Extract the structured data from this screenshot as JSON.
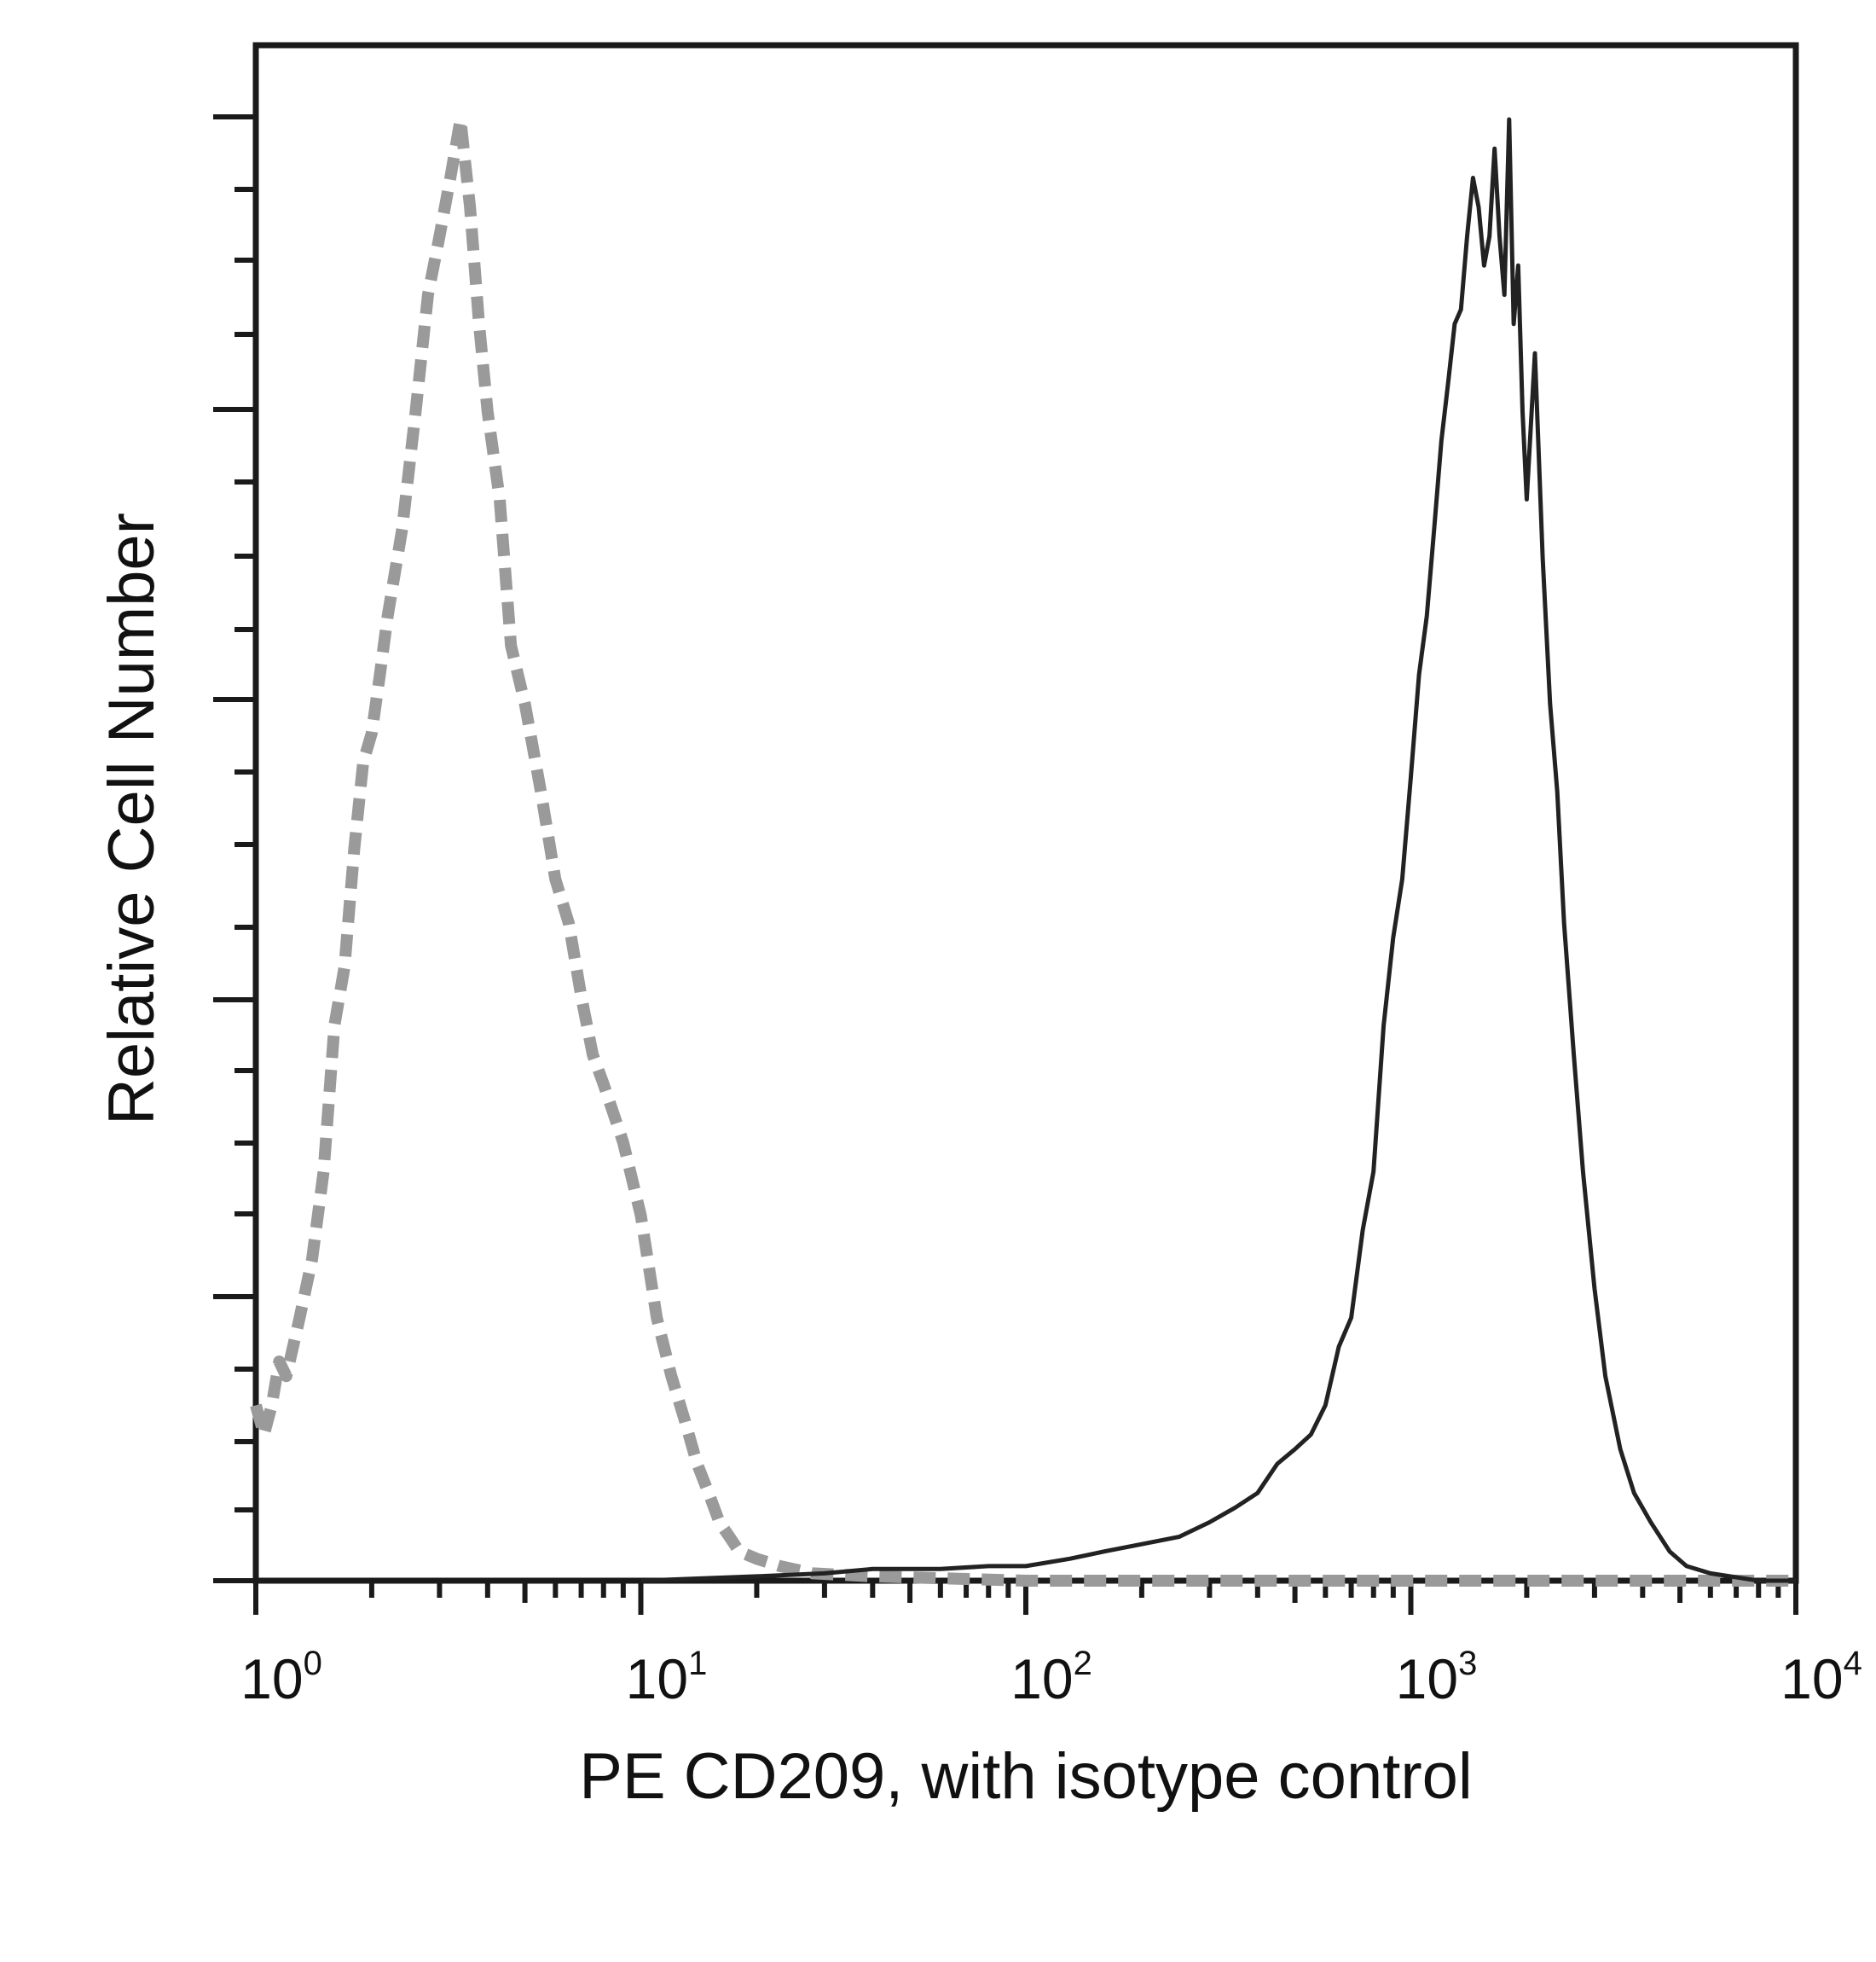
{
  "chart_data": {
    "type": "line",
    "xlabel": "PE CD209, with isotype control",
    "ylabel": "Relative Cell Number",
    "x_scale": "log",
    "xlim": [
      1,
      10000
    ],
    "ylim": [
      0,
      100
    ],
    "grid": false,
    "x_ticks": [
      {
        "base": "10",
        "exp": "0"
      },
      {
        "base": "10",
        "exp": "1"
      },
      {
        "base": "10",
        "exp": "2"
      },
      {
        "base": "10",
        "exp": "3"
      },
      {
        "base": "10",
        "exp": "4"
      }
    ],
    "series": [
      {
        "style": "dashed",
        "color": "#9a9a9a",
        "x": [
          1.0,
          1.05,
          1.1,
          1.15,
          1.2,
          1.3,
          1.4,
          1.5,
          1.6,
          1.7,
          1.8,
          1.9,
          2.0,
          2.1,
          2.2,
          2.4,
          2.6,
          2.8,
          3.0,
          3.2,
          3.4,
          3.6,
          3.8,
          4.0,
          4.3,
          4.6,
          5.0,
          5.5,
          6.0,
          6.5,
          7.0,
          7.5,
          8.0,
          9.0,
          10.0,
          11.0,
          12.0,
          13.0,
          14.0,
          15.0,
          16.0,
          17.0,
          18.0,
          20.0,
          23.0,
          28.0,
          40.0,
          100.0,
          1000.0,
          10000.0
        ],
        "values": [
          12,
          10,
          12,
          15,
          14,
          18,
          22,
          28,
          38,
          42,
          50,
          56,
          58,
          62,
          66,
          72,
          80,
          88,
          92,
          96,
          100,
          94,
          86,
          80,
          74,
          64,
          60,
          54,
          48,
          45,
          40,
          36,
          34,
          30,
          25,
          18,
          14,
          11,
          8,
          6,
          4,
          3,
          2,
          1.5,
          1,
          0.5,
          0.3,
          0,
          0,
          0
        ]
      },
      {
        "style": "solid",
        "color": "#222222",
        "x": [
          10.0,
          20.0,
          30.0,
          40.0,
          60.0,
          80.0,
          100.0,
          130.0,
          160.0,
          200.0,
          250.0,
          300.0,
          350.0,
          400.0,
          450.0,
          500.0,
          550.0,
          600.0,
          650.0,
          700.0,
          750.0,
          800.0,
          850.0,
          900.0,
          950.0,
          1000.0,
          1050.0,
          1100.0,
          1150.0,
          1200.0,
          1250.0,
          1300.0,
          1350.0,
          1400.0,
          1450.0,
          1500.0,
          1550.0,
          1600.0,
          1650.0,
          1700.0,
          1750.0,
          1800.0,
          1850.0,
          1900.0,
          1950.0,
          2000.0,
          2100.0,
          2200.0,
          2300.0,
          2400.0,
          2500.0,
          2650.0,
          2800.0,
          3000.0,
          3200.0,
          3500.0,
          3800.0,
          4200.0,
          4700.0,
          5200.0,
          6000.0,
          8000.0,
          10000.0
        ],
        "values": [
          0,
          0.3,
          0.5,
          0.8,
          0.8,
          1,
          1,
          1.5,
          2,
          2.5,
          3,
          4,
          5,
          6,
          8,
          9,
          10,
          12,
          16,
          18,
          24,
          28,
          38,
          44,
          48,
          55,
          62,
          66,
          72,
          78,
          82,
          86,
          87,
          92,
          96,
          94,
          90,
          92,
          98,
          92,
          88,
          100,
          86,
          90,
          80,
          74,
          84,
          70,
          60,
          54,
          45,
          36,
          28,
          20,
          14,
          9,
          6,
          4,
          2,
          1,
          0.5,
          0,
          0
        ]
      }
    ]
  }
}
